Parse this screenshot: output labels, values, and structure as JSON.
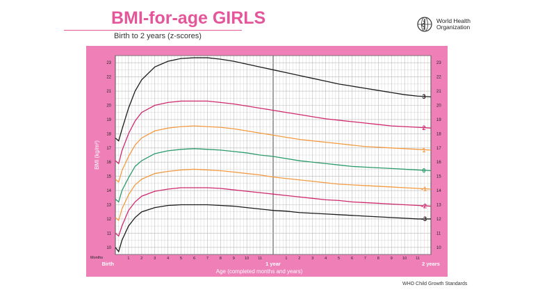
{
  "header": {
    "title": "BMI-for-age GIRLS",
    "subtitle": "Birth to 2 years (z-scores)",
    "org_name_line1": "World Health",
    "org_name_line2": "Organization",
    "logo_icon": "who-emblem-icon"
  },
  "footer": {
    "text": "WHO Child Growth Standards"
  },
  "colors": {
    "panel": "#ee7fb7",
    "plot_bg": "#ffffff",
    "grid": "#b9b9b9",
    "title": "#e5559a"
  },
  "chart_data": {
    "type": "line",
    "title": "BMI-for-age GIRLS",
    "subtitle": "Birth to 2 years (z-scores)",
    "xlabel": "Age (completed months and years)",
    "ylabel": "BMI (kg/m²)",
    "x_unit": "months",
    "x_unit_label": "Months",
    "xlim": [
      0,
      24
    ],
    "ylim": [
      9.5,
      23.5
    ],
    "grid": true,
    "x_minor_step_months": 0.25,
    "x_ticks": [
      {
        "x": 0,
        "label": "Birth"
      },
      {
        "x": 1,
        "label": "1"
      },
      {
        "x": 2,
        "label": "2"
      },
      {
        "x": 3,
        "label": "3"
      },
      {
        "x": 4,
        "label": "4"
      },
      {
        "x": 5,
        "label": "5"
      },
      {
        "x": 6,
        "label": "6"
      },
      {
        "x": 7,
        "label": "7"
      },
      {
        "x": 8,
        "label": "8"
      },
      {
        "x": 9,
        "label": "9"
      },
      {
        "x": 10,
        "label": "10"
      },
      {
        "x": 11,
        "label": "11"
      },
      {
        "x": 12,
        "label": "1 year"
      },
      {
        "x": 13,
        "label": "1"
      },
      {
        "x": 14,
        "label": "2"
      },
      {
        "x": 15,
        "label": "3"
      },
      {
        "x": 16,
        "label": "4"
      },
      {
        "x": 17,
        "label": "5"
      },
      {
        "x": 18,
        "label": "6"
      },
      {
        "x": 19,
        "label": "7"
      },
      {
        "x": 20,
        "label": "8"
      },
      {
        "x": 21,
        "label": "9"
      },
      {
        "x": 22,
        "label": "10"
      },
      {
        "x": 23,
        "label": "11"
      },
      {
        "x": 24,
        "label": "2 years"
      }
    ],
    "y_ticks": [
      10,
      11,
      12,
      13,
      14,
      15,
      16,
      17,
      18,
      19,
      20,
      21,
      22,
      23
    ],
    "x": [
      0,
      0.25,
      0.5,
      1,
      1.5,
      2,
      3,
      4,
      5,
      6,
      7,
      8,
      9,
      10,
      11,
      12,
      13,
      14,
      15,
      16,
      17,
      18,
      19,
      20,
      21,
      22,
      23,
      24
    ],
    "series": [
      {
        "name": "3",
        "color": "#1a1a1a",
        "values": [
          17.7,
          17.5,
          18.3,
          19.8,
          21.0,
          21.8,
          22.7,
          23.1,
          23.3,
          23.35,
          23.35,
          23.25,
          23.1,
          22.9,
          22.7,
          22.5,
          22.3,
          22.1,
          21.9,
          21.7,
          21.5,
          21.35,
          21.2,
          21.05,
          20.9,
          20.75,
          20.65,
          20.6
        ]
      },
      {
        "name": "2",
        "color": "#d0286e",
        "values": [
          16.1,
          15.9,
          16.8,
          18.0,
          18.9,
          19.5,
          20.0,
          20.2,
          20.3,
          20.3,
          20.3,
          20.2,
          20.1,
          19.95,
          19.8,
          19.65,
          19.5,
          19.35,
          19.2,
          19.05,
          18.95,
          18.85,
          18.75,
          18.65,
          18.55,
          18.5,
          18.45,
          18.4
        ]
      },
      {
        "name": "1",
        "color": "#f39a42",
        "values": [
          14.8,
          14.6,
          15.4,
          16.4,
          17.2,
          17.7,
          18.2,
          18.4,
          18.5,
          18.55,
          18.5,
          18.45,
          18.35,
          18.2,
          18.05,
          17.9,
          17.75,
          17.6,
          17.5,
          17.4,
          17.3,
          17.2,
          17.1,
          17.05,
          17.0,
          16.95,
          16.9,
          16.85
        ]
      },
      {
        "name": "0",
        "color": "#2a9a6a",
        "values": [
          13.4,
          13.2,
          14.0,
          14.9,
          15.7,
          16.1,
          16.6,
          16.8,
          16.9,
          16.95,
          16.9,
          16.85,
          16.75,
          16.65,
          16.5,
          16.4,
          16.25,
          16.1,
          16.0,
          15.9,
          15.8,
          15.7,
          15.65,
          15.6,
          15.55,
          15.5,
          15.45,
          15.4
        ]
      },
      {
        "name": "-1",
        "color": "#f39a42",
        "values": [
          12.1,
          11.9,
          12.7,
          13.7,
          14.4,
          14.8,
          15.2,
          15.35,
          15.45,
          15.5,
          15.45,
          15.4,
          15.3,
          15.2,
          15.1,
          14.95,
          14.85,
          14.75,
          14.65,
          14.55,
          14.45,
          14.4,
          14.35,
          14.3,
          14.25,
          14.2,
          14.15,
          14.1
        ]
      },
      {
        "name": "-2",
        "color": "#d0286e",
        "values": [
          11.0,
          10.8,
          11.5,
          12.6,
          13.2,
          13.6,
          13.95,
          14.1,
          14.2,
          14.2,
          14.2,
          14.15,
          14.05,
          13.95,
          13.85,
          13.75,
          13.65,
          13.55,
          13.45,
          13.35,
          13.3,
          13.2,
          13.15,
          13.1,
          13.05,
          13.0,
          12.95,
          12.9
        ]
      },
      {
        "name": "-3",
        "color": "#1a1a1a",
        "values": [
          10.0,
          9.7,
          10.5,
          11.5,
          12.1,
          12.5,
          12.8,
          12.95,
          13.0,
          13.0,
          13.0,
          12.95,
          12.9,
          12.8,
          12.7,
          12.6,
          12.55,
          12.45,
          12.4,
          12.35,
          12.3,
          12.25,
          12.2,
          12.15,
          12.1,
          12.05,
          12.0,
          12.0
        ]
      }
    ]
  }
}
